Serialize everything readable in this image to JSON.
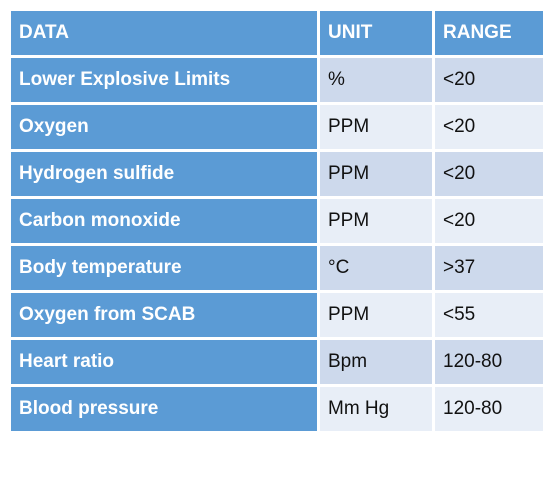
{
  "table": {
    "headers": {
      "data": "DATA",
      "unit": "UNIT",
      "range": "RANGE"
    },
    "rows": [
      {
        "data": "Lower Explosive Limits",
        "unit": "%",
        "range": "<20"
      },
      {
        "data": "Oxygen",
        "unit": "PPM",
        "range": "<20"
      },
      {
        "data": "Hydrogen sulfide",
        "unit": "PPM",
        "range": "<20"
      },
      {
        "data": "Carbon monoxide",
        "unit": "PPM",
        "range": "<20"
      },
      {
        "data": "Body temperature",
        "unit": "°C",
        "range": ">37"
      },
      {
        "data": "Oxygen from SCAB",
        "unit": "PPM",
        "range": "<55"
      },
      {
        "data": "Heart ratio",
        "unit": "Bpm",
        "range": "120-80"
      },
      {
        "data": "Blood pressure",
        "unit": "Mm Hg",
        "range": "120-80"
      }
    ]
  },
  "colors": {
    "header_blue": "#5b9bd5",
    "band_dark": "#cdd9ec",
    "band_light": "#e8eef7"
  }
}
